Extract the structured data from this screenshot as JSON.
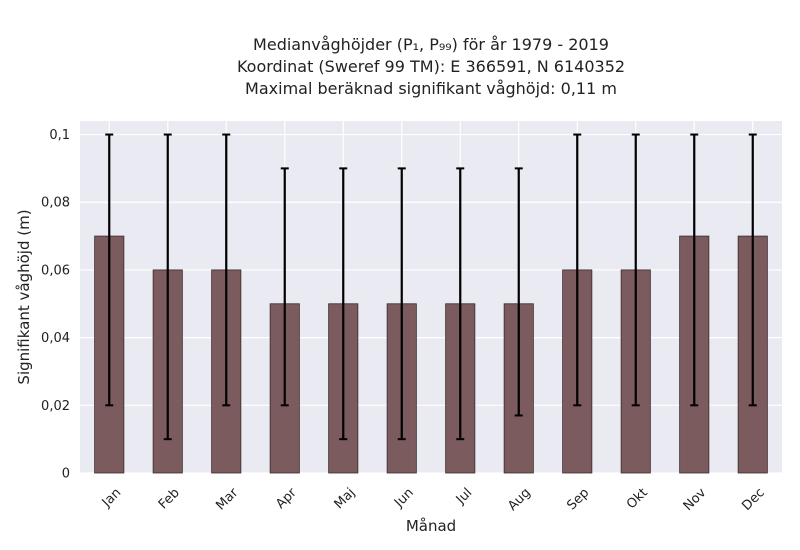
{
  "chart_data": {
    "type": "bar",
    "title_lines": [
      "Medianvåghöjder (P₁, P₉₉) för år 1979 - 2019",
      "Koordinat (Sweref 99 TM): E 366591, N 6140352",
      "Maximal beräknad signifikant våghöjd: 0,11 m"
    ],
    "xlabel": "Månad",
    "ylabel": "Signifikant våghöjd (m)",
    "categories": [
      "Jan",
      "Feb",
      "Mar",
      "Apr",
      "Maj",
      "Jun",
      "Jul",
      "Aug",
      "Sep",
      "Okt",
      "Nov",
      "Dec"
    ],
    "values": [
      0.07,
      0.06,
      0.06,
      0.05,
      0.05,
      0.05,
      0.05,
      0.05,
      0.06,
      0.06,
      0.07,
      0.07
    ],
    "error_low": [
      0.02,
      0.01,
      0.02,
      0.02,
      0.01,
      0.01,
      0.01,
      0.017,
      0.02,
      0.02,
      0.02,
      0.02
    ],
    "error_high": [
      0.1,
      0.1,
      0.1,
      0.09,
      0.09,
      0.09,
      0.09,
      0.09,
      0.1,
      0.1,
      0.1,
      0.1
    ],
    "ylim": [
      0,
      0.104
    ],
    "yticks": [
      0,
      0.02,
      0.04,
      0.06,
      0.08,
      0.1
    ],
    "ytick_labels": [
      "0",
      "0,02",
      "0,04",
      "0,06",
      "0,08",
      "0,1"
    ],
    "grid": true,
    "colors": {
      "bar": "#7b5b5d",
      "bar_edge": "#3a2a2b",
      "plot_background": "#eaeaf2",
      "grid": "#ffffff",
      "errorbar": "#000000"
    }
  }
}
